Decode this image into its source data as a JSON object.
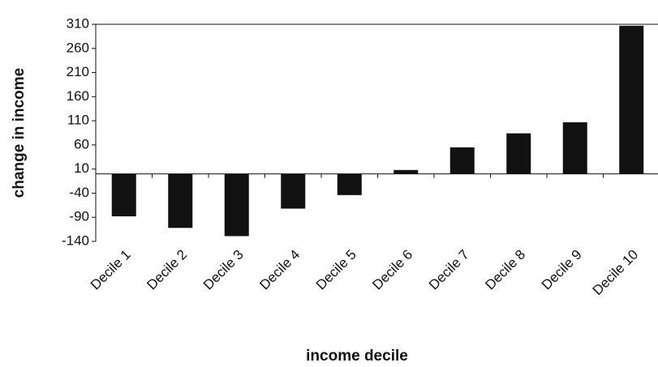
{
  "chart_data": {
    "type": "bar",
    "x_label": "income decile",
    "y_label": "change in income",
    "categories": [
      "Decile 1",
      "Decile 2",
      "Decile 3",
      "Decile 4",
      "Decile 5",
      "Decile 6",
      "Decile 7",
      "Decile 8",
      "Decile 9",
      "Decile 10"
    ],
    "values": [
      -88,
      -112,
      -129,
      -72,
      -44,
      8,
      55,
      84,
      107,
      307
    ],
    "color": "#111111",
    "ylim": [
      -140,
      310
    ],
    "yticks": [
      -140,
      -90,
      -40,
      10,
      60,
      110,
      160,
      210,
      260,
      310
    ],
    "grid": false
  }
}
